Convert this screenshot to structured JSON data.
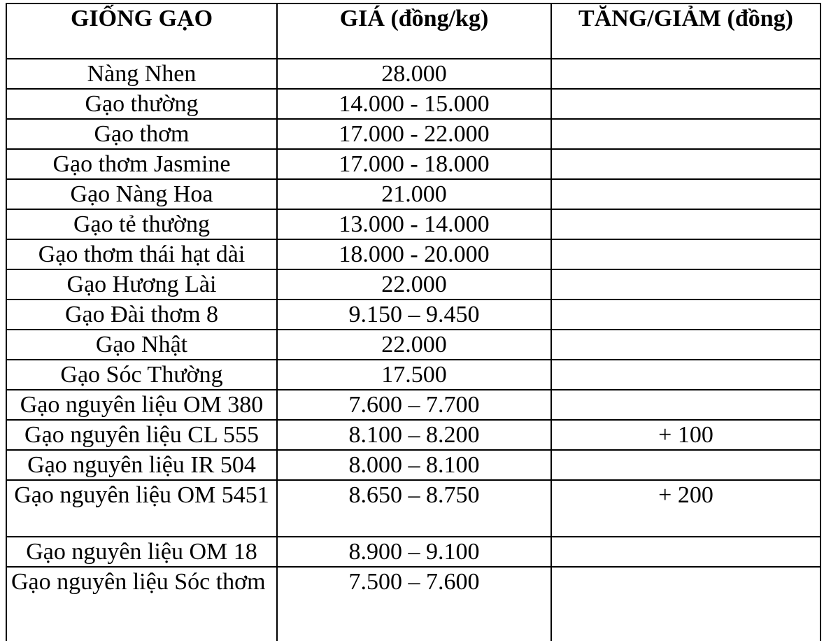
{
  "table": {
    "headers": [
      "GIỐNG GẠO",
      "GIÁ (đồng/kg)",
      "TĂNG/GIẢM (đồng)"
    ],
    "rows": [
      {
        "variety": "Nàng Nhen",
        "price": "28.000",
        "change": ""
      },
      {
        "variety": "Gạo thường",
        "price": "14.000 - 15.000",
        "change": ""
      },
      {
        "variety": "Gạo thơm",
        "price": "17.000 - 22.000",
        "change": ""
      },
      {
        "variety": "Gạo thơm Jasmine",
        "price": "17.000 - 18.000",
        "change": ""
      },
      {
        "variety": "Gạo Nàng Hoa",
        "price": "21.000",
        "change": ""
      },
      {
        "variety": "Gạo tẻ thường",
        "price": "13.000 - 14.000",
        "change": ""
      },
      {
        "variety": "Gạo thơm thái hạt dài",
        "price": "18.000 - 20.000",
        "change": ""
      },
      {
        "variety": "Gạo Hương Lài",
        "price": "22.000",
        "change": ""
      },
      {
        "variety": "Gạo Đài thơm 8",
        "price": "9.150 – 9.450",
        "change": ""
      },
      {
        "variety": "Gạo Nhật",
        "price": "22.000",
        "change": ""
      },
      {
        "variety": "Gạo Sóc Thường",
        "price": "17.500",
        "change": ""
      },
      {
        "variety": "Gạo nguyên liệu OM 380",
        "price": "7.600 – 7.700",
        "change": ""
      },
      {
        "variety": "Gạo nguyên liệu CL 555",
        "price": "8.100 – 8.200",
        "change": "+ 100"
      },
      {
        "variety": "Gạo nguyên liệu IR 504",
        "price": "8.000 – 8.100",
        "change": ""
      },
      {
        "variety": "Gạo nguyên liệu OM 5451",
        "price": "8.650 – 8.750",
        "change": "+ 200"
      },
      {
        "variety": "Gạo nguyên liệu OM 18",
        "price": "8.900 – 9.100",
        "change": ""
      },
      {
        "variety": "Gạo nguyên liệu Sóc thơm",
        "price": "7.500 – 7.600",
        "change": ""
      }
    ],
    "row_layout_hints": {
      "two_line_row_index": 14,
      "three_line_left_aligned_row_index": 16
    },
    "colors": {
      "border": "#000000",
      "background": "#ffffff",
      "text": "#000000"
    }
  }
}
